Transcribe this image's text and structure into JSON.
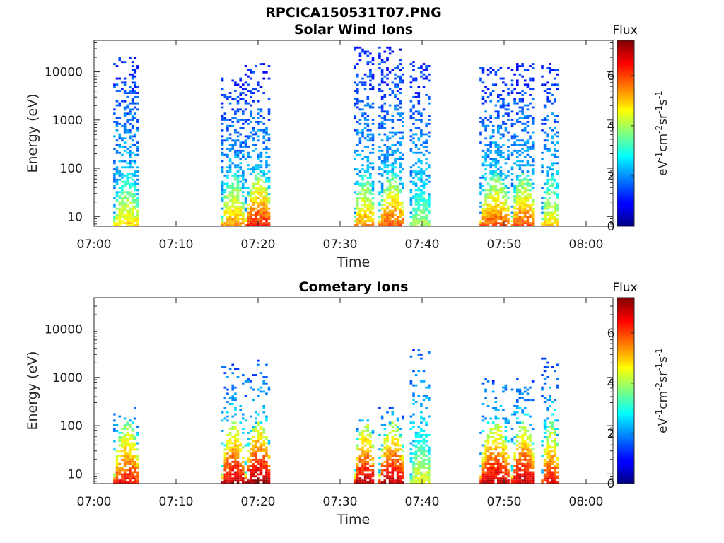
{
  "figure_title": "RPCICA150531T07.PNG",
  "colorbar": {
    "label": "Flux",
    "ticks": [
      "0",
      "2",
      "4",
      "6"
    ],
    "range": [
      0,
      7.4
    ],
    "colormap": "jet"
  },
  "chart_data": [
    {
      "type": "heatmap",
      "title": "Solar Wind Ions",
      "xlabel": "Time",
      "ylabel": "Energy (eV)",
      "x_ticks": [
        "07:00",
        "07:10",
        "07:20",
        "07:30",
        "07:40",
        "07:50",
        "08:00"
      ],
      "y_ticks": [
        "10",
        "100",
        "1000",
        "10000"
      ],
      "y_scale": "log",
      "xlim_minutes_after_0700": [
        0,
        63.2
      ],
      "ylim": [
        6.3,
        45000
      ],
      "bursts": [
        {
          "start": "07:02:20",
          "end": "07:05:30",
          "low_energy_peak_flux": 5.0,
          "high_energy_reach": 25000
        },
        {
          "start": "07:15:30",
          "end": "07:18:20",
          "low_energy_peak_flux": 5.5,
          "high_energy_reach": 8000
        },
        {
          "start": "07:18:20",
          "end": "07:21:30",
          "low_energy_peak_flux": 6.5,
          "high_energy_reach": 15000
        },
        {
          "start": "07:31:40",
          "end": "07:34:10",
          "low_energy_peak_flux": 5.5,
          "high_energy_reach": 33000
        },
        {
          "start": "07:34:40",
          "end": "07:37:50",
          "low_energy_peak_flux": 6.0,
          "high_energy_reach": 33000
        },
        {
          "start": "07:38:30",
          "end": "07:41:00",
          "low_energy_peak_flux": 4.0,
          "high_energy_reach": 19000
        },
        {
          "start": "07:47:00",
          "end": "07:50:40",
          "low_energy_peak_flux": 6.0,
          "high_energy_reach": 13000
        },
        {
          "start": "07:50:50",
          "end": "07:53:40",
          "low_energy_peak_flux": 6.0,
          "high_energy_reach": 15000
        },
        {
          "start": "07:54:30",
          "end": "07:56:40",
          "low_energy_peak_flux": 5.0,
          "high_energy_reach": 15000
        }
      ]
    },
    {
      "type": "heatmap",
      "title": "Cometary Ions",
      "xlabel": "Time",
      "ylabel": "Energy (eV)",
      "x_ticks": [
        "07:00",
        "07:10",
        "07:20",
        "07:30",
        "07:40",
        "07:50",
        "08:00"
      ],
      "y_ticks": [
        "10",
        "100",
        "1000",
        "10000"
      ],
      "y_scale": "log",
      "xlim_minutes_after_0700": [
        0,
        63.2
      ],
      "ylim": [
        6.3,
        45000
      ],
      "bursts": [
        {
          "start": "07:02:20",
          "end": "07:05:30",
          "low_energy_peak_flux": 6.5,
          "high_energy_reach": 260
        },
        {
          "start": "07:15:30",
          "end": "07:18:20",
          "low_energy_peak_flux": 7.0,
          "high_energy_reach": 2000
        },
        {
          "start": "07:18:20",
          "end": "07:21:30",
          "low_energy_peak_flux": 7.3,
          "high_energy_reach": 2800
        },
        {
          "start": "07:31:40",
          "end": "07:34:10",
          "low_energy_peak_flux": 7.0,
          "high_energy_reach": 200
        },
        {
          "start": "07:34:40",
          "end": "07:37:50",
          "low_energy_peak_flux": 7.0,
          "high_energy_reach": 250
        },
        {
          "start": "07:38:30",
          "end": "07:41:00",
          "low_energy_peak_flux": 4.5,
          "high_energy_reach": 5400
        },
        {
          "start": "07:47:00",
          "end": "07:50:40",
          "low_energy_peak_flux": 7.0,
          "high_energy_reach": 1000
        },
        {
          "start": "07:50:50",
          "end": "07:53:40",
          "low_energy_peak_flux": 7.0,
          "high_energy_reach": 1000
        },
        {
          "start": "07:54:30",
          "end": "07:56:40",
          "low_energy_peak_flux": 6.5,
          "high_energy_reach": 2500
        }
      ]
    }
  ]
}
